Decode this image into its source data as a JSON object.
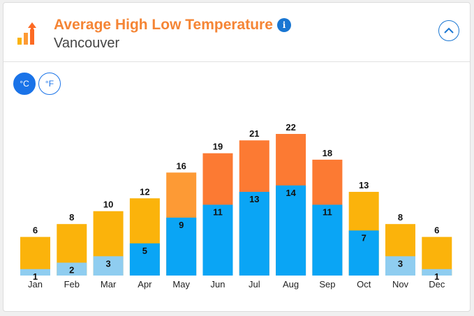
{
  "header": {
    "title": "Average High Low Temperature",
    "subtitle": "Vancouver",
    "info_icon": "info-icon",
    "collapse_icon": "chevron-up-icon"
  },
  "units": {
    "celsius_label": "°C",
    "fahrenheit_label": "°F",
    "selected": "°C"
  },
  "colors": {
    "accent": "#1a73e8",
    "title": "#f58535",
    "low_cold": "#8fcdf0",
    "low_warm": "#0aa5f5",
    "high_cool": "#fbb30b",
    "high_mild": "#fd9a35",
    "high_warm": "#fc7a33"
  },
  "chart_data": {
    "type": "bar",
    "categories": [
      "Jan",
      "Feb",
      "Mar",
      "Apr",
      "May",
      "Jun",
      "Jul",
      "Aug",
      "Sep",
      "Oct",
      "Nov",
      "Dec"
    ],
    "series": [
      {
        "name": "",
        "role": "high",
        "values": [
          6,
          8,
          10,
          12,
          16,
          19,
          21,
          22,
          18,
          13,
          8,
          6
        ]
      },
      {
        "name": "",
        "role": "low",
        "values": [
          1,
          2,
          3,
          5,
          9,
          11,
          13,
          14,
          11,
          7,
          3,
          1
        ]
      }
    ],
    "ylim": [
      0,
      22
    ],
    "grid": false,
    "legend": "none"
  }
}
